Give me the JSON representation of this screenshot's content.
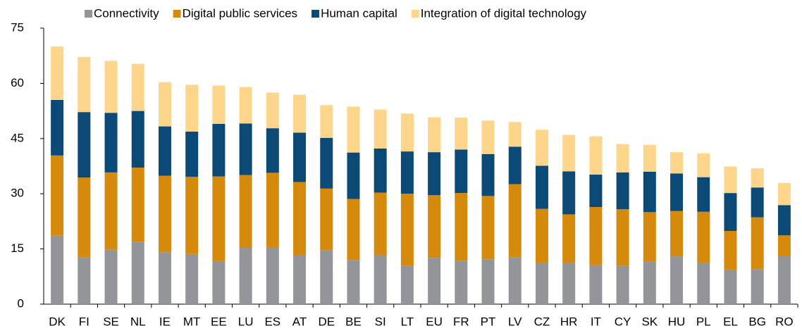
{
  "chart_data": {
    "type": "stacked_bar",
    "categories": [
      "DK",
      "FI",
      "SE",
      "NL",
      "IE",
      "MT",
      "EE",
      "LU",
      "ES",
      "AT",
      "DE",
      "BE",
      "SI",
      "LT",
      "EU",
      "FR",
      "PT",
      "LV",
      "CZ",
      "HR",
      "IT",
      "CY",
      "SK",
      "HU",
      "PL",
      "EL",
      "BG",
      "RO"
    ],
    "series": [
      {
        "name": "Connectivity",
        "color": "#939598",
        "values": [
          18.6,
          12.8,
          14.8,
          17.0,
          14.1,
          13.6,
          11.7,
          15.3,
          15.5,
          13.3,
          14.6,
          12.0,
          13.3,
          10.5,
          12.6,
          11.8,
          12.2,
          12.7,
          11.1,
          11.3,
          10.6,
          10.5,
          11.6,
          13.0,
          11.3,
          9.4,
          9.5,
          13.2
        ]
      },
      {
        "name": "Digital public services",
        "color": "#d68a0c",
        "values": [
          21.8,
          21.6,
          21.0,
          20.1,
          20.8,
          21.0,
          23.0,
          19.8,
          20.2,
          19.9,
          16.8,
          16.6,
          17.0,
          19.5,
          17.0,
          18.4,
          17.2,
          19.9,
          14.8,
          13.1,
          15.8,
          15.3,
          13.4,
          12.3,
          13.8,
          10.5,
          14.1,
          5.5
        ]
      },
      {
        "name": "Human capital",
        "color": "#0b4a76",
        "values": [
          15.1,
          17.8,
          16.2,
          15.4,
          13.4,
          12.3,
          14.3,
          14.0,
          12.1,
          13.4,
          13.8,
          12.6,
          12.0,
          11.5,
          11.7,
          11.8,
          11.4,
          10.2,
          11.7,
          11.7,
          8.8,
          10.0,
          11.0,
          10.2,
          9.4,
          10.3,
          8.1,
          8.2
        ]
      },
      {
        "name": "Integration of digital technology",
        "color": "#fdd68b",
        "values": [
          14.5,
          15.0,
          14.1,
          12.8,
          12.0,
          12.7,
          10.4,
          9.9,
          9.7,
          10.3,
          8.9,
          12.5,
          10.6,
          10.3,
          9.5,
          8.7,
          9.1,
          6.7,
          9.8,
          9.9,
          10.4,
          7.7,
          7.3,
          5.8,
          6.5,
          7.2,
          5.2,
          6.0
        ]
      }
    ],
    "ylim": [
      0,
      75
    ],
    "yticks": [
      0,
      15,
      30,
      45,
      60,
      75
    ],
    "legend": "top"
  }
}
